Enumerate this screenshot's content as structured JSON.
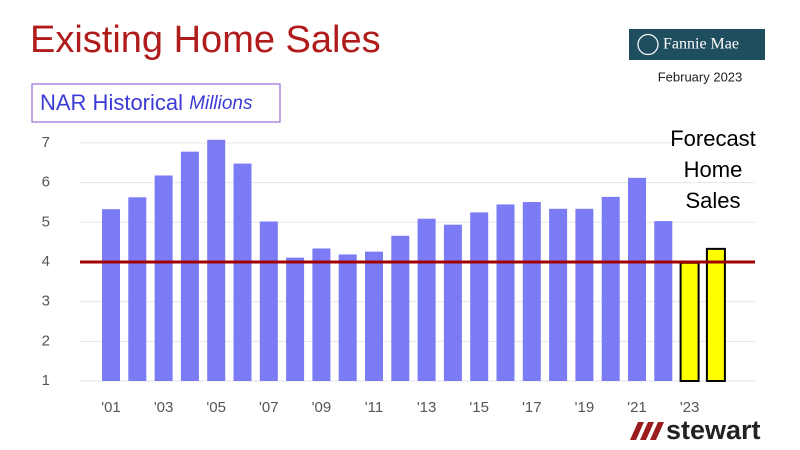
{
  "chart_data": {
    "type": "bar",
    "title": "Existing Home Sales",
    "subtitle": "NAR Historical",
    "subtitle_unit": "Millions",
    "logo": "Fannie Mae",
    "date": "February  2023",
    "annotation": [
      "Forecast",
      "Home",
      "Sales"
    ],
    "footer_logo": "stewart",
    "categories": [
      "'01",
      null,
      "'03",
      null,
      "'05",
      null,
      "'07",
      null,
      "'09",
      null,
      "'11",
      null,
      "'13",
      null,
      "'15",
      null,
      "'17",
      null,
      "'19",
      null,
      "'21",
      null,
      "'23",
      null
    ],
    "series": [
      {
        "color": "#7b7bf5",
        "values": [
          5.33,
          5.63,
          6.18,
          6.78,
          7.08,
          6.48,
          5.02,
          4.11,
          4.34,
          4.19,
          4.26,
          4.66,
          5.09,
          4.94,
          5.25,
          5.45,
          5.51,
          5.34,
          5.34,
          5.64,
          6.12,
          5.03,
          null,
          null
        ]
      },
      {
        "color": "#ffff00",
        "edge_color": "#000000",
        "values": [
          null,
          null,
          null,
          null,
          null,
          null,
          null,
          null,
          null,
          null,
          null,
          null,
          null,
          null,
          null,
          null,
          null,
          null,
          null,
          null,
          null,
          null,
          3.98,
          4.33
        ]
      }
    ],
    "reference_line": {
      "value": 4,
      "color": "#a00000"
    },
    "ylim": [
      1,
      7.2
    ],
    "yticks": [
      1,
      2,
      3,
      4,
      5,
      6,
      7
    ],
    "grid": true
  }
}
